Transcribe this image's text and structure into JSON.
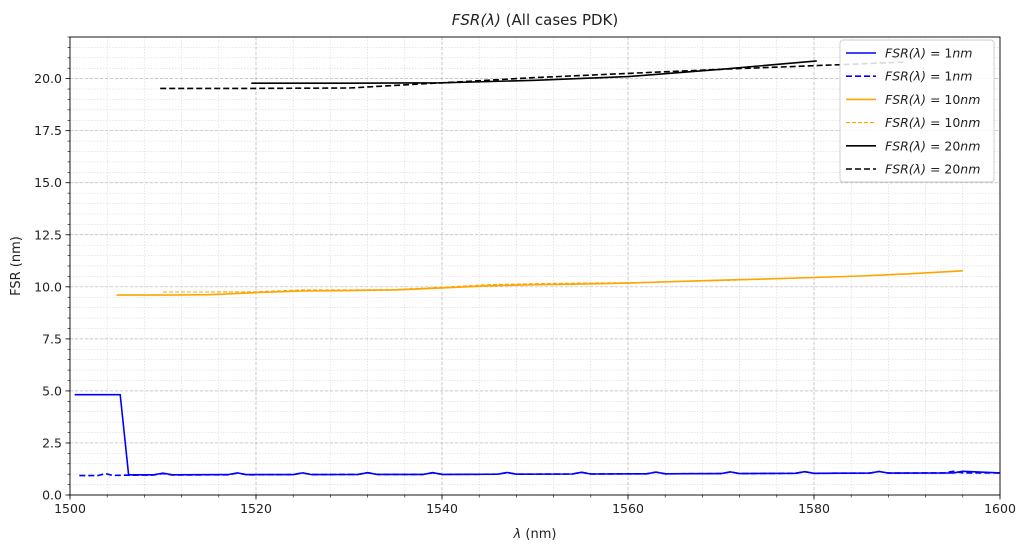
{
  "chart_data": {
    "type": "line",
    "title": "FSR(λ) (All cases PDK)",
    "xlabel": "λ (nm)",
    "ylabel": "FSR (nm)",
    "xlim": [
      1500,
      1600
    ],
    "ylim": [
      0,
      22
    ],
    "xticks": [
      1500,
      1520,
      1540,
      1560,
      1580,
      1600
    ],
    "xtick_labels": [
      "1500",
      "1520",
      "1540",
      "1560",
      "1580",
      "1600"
    ],
    "yticks": [
      0,
      2.5,
      5,
      7.5,
      10,
      12.5,
      15,
      17.5,
      20
    ],
    "ytick_labels": [
      "0.0",
      "2.5",
      "5.0",
      "7.5",
      "10.0",
      "12.5",
      "15.0",
      "17.5",
      "20.0"
    ],
    "grid": "major and minor, dotted gray",
    "legend_position": "top-right",
    "series": [
      {
        "name": "FSR(λ)=1nm",
        "color": "#0000ff",
        "style": "solid",
        "x": [
          1500.5,
          1505.4,
          1506.3,
          1509,
          1510,
          1511,
          1517,
          1518,
          1519,
          1524,
          1525,
          1526,
          1531,
          1532,
          1533,
          1538,
          1539,
          1540,
          1546,
          1547,
          1548,
          1554,
          1555,
          1556,
          1562,
          1563,
          1564,
          1570,
          1571,
          1572,
          1578,
          1579,
          1580,
          1586,
          1587,
          1588,
          1595,
          1596,
          1600
        ],
        "y": [
          4.82,
          4.82,
          0.97,
          0.97,
          1.05,
          0.97,
          0.98,
          1.06,
          0.98,
          0.98,
          1.06,
          0.98,
          0.99,
          1.07,
          0.99,
          0.99,
          1.07,
          0.99,
          1.0,
          1.08,
          1.0,
          1.01,
          1.09,
          1.01,
          1.02,
          1.1,
          1.02,
          1.03,
          1.11,
          1.03,
          1.04,
          1.12,
          1.04,
          1.05,
          1.13,
          1.05,
          1.06,
          1.14,
          1.06
        ]
      },
      {
        "name": "FSR(λ)=1nm",
        "color": "#0000ff",
        "style": "dashed",
        "x": [
          1501,
          1503,
          1503.8,
          1504.6,
          1506,
          1509,
          1510,
          1511,
          1517,
          1518,
          1519,
          1524,
          1525,
          1526,
          1531,
          1532,
          1533,
          1538,
          1539,
          1540,
          1546,
          1547,
          1548,
          1554,
          1555,
          1556,
          1562,
          1563,
          1564,
          1570,
          1571,
          1572,
          1578,
          1579,
          1580,
          1586,
          1587,
          1588,
          1594,
          1595,
          1596,
          1600
        ],
        "y": [
          0.93,
          0.93,
          1.03,
          0.94,
          0.95,
          0.96,
          1.03,
          0.96,
          0.97,
          1.05,
          0.97,
          0.98,
          1.06,
          0.98,
          0.99,
          1.07,
          0.99,
          0.99,
          1.07,
          0.99,
          1.0,
          1.08,
          1.0,
          1.01,
          1.09,
          1.01,
          1.02,
          1.1,
          1.02,
          1.03,
          1.11,
          1.03,
          1.04,
          1.12,
          1.04,
          1.05,
          1.13,
          1.05,
          1.06,
          1.14,
          1.06,
          1.06
        ]
      },
      {
        "name": "FSR(λ)=10nm",
        "color": "#ffa500",
        "style": "solid",
        "x": [
          1505,
          1510,
          1515,
          1520,
          1525,
          1530,
          1535,
          1540,
          1545,
          1550,
          1555,
          1560,
          1565,
          1570,
          1575,
          1580,
          1585,
          1590,
          1596
        ],
        "y": [
          9.6,
          9.6,
          9.62,
          9.72,
          9.8,
          9.82,
          9.85,
          9.95,
          10.05,
          10.1,
          10.13,
          10.18,
          10.25,
          10.32,
          10.38,
          10.45,
          10.52,
          10.62,
          10.77
        ]
      },
      {
        "name": "FSR(λ)=10nm",
        "color": "#ffa500",
        "style": "dashed",
        "x": [
          1510,
          1515,
          1520,
          1525,
          1530,
          1535,
          1540,
          1545,
          1550,
          1555,
          1560,
          1565,
          1570,
          1575,
          1580,
          1585,
          1590
        ],
        "y": [
          9.75,
          9.75,
          9.76,
          9.85,
          9.85,
          9.87,
          9.98,
          10.1,
          10.15,
          10.18,
          10.2,
          10.25,
          10.3,
          10.38,
          10.45,
          10.52,
          10.62
        ]
      },
      {
        "name": "FSR(λ)=20nm",
        "color": "#000000",
        "style": "solid",
        "x": [
          1519.5,
          1530,
          1540,
          1550,
          1560,
          1570,
          1580.3
        ],
        "y": [
          19.78,
          19.78,
          19.8,
          19.92,
          20.1,
          20.45,
          20.85
        ]
      },
      {
        "name": "FSR(λ)=20nm",
        "color": "#000000",
        "style": "dashed",
        "x": [
          1509.7,
          1520,
          1530,
          1540,
          1550,
          1560,
          1570,
          1580,
          1590
        ],
        "y": [
          19.53,
          19.53,
          19.55,
          19.8,
          20.05,
          20.25,
          20.45,
          20.62,
          20.8
        ]
      }
    ]
  }
}
